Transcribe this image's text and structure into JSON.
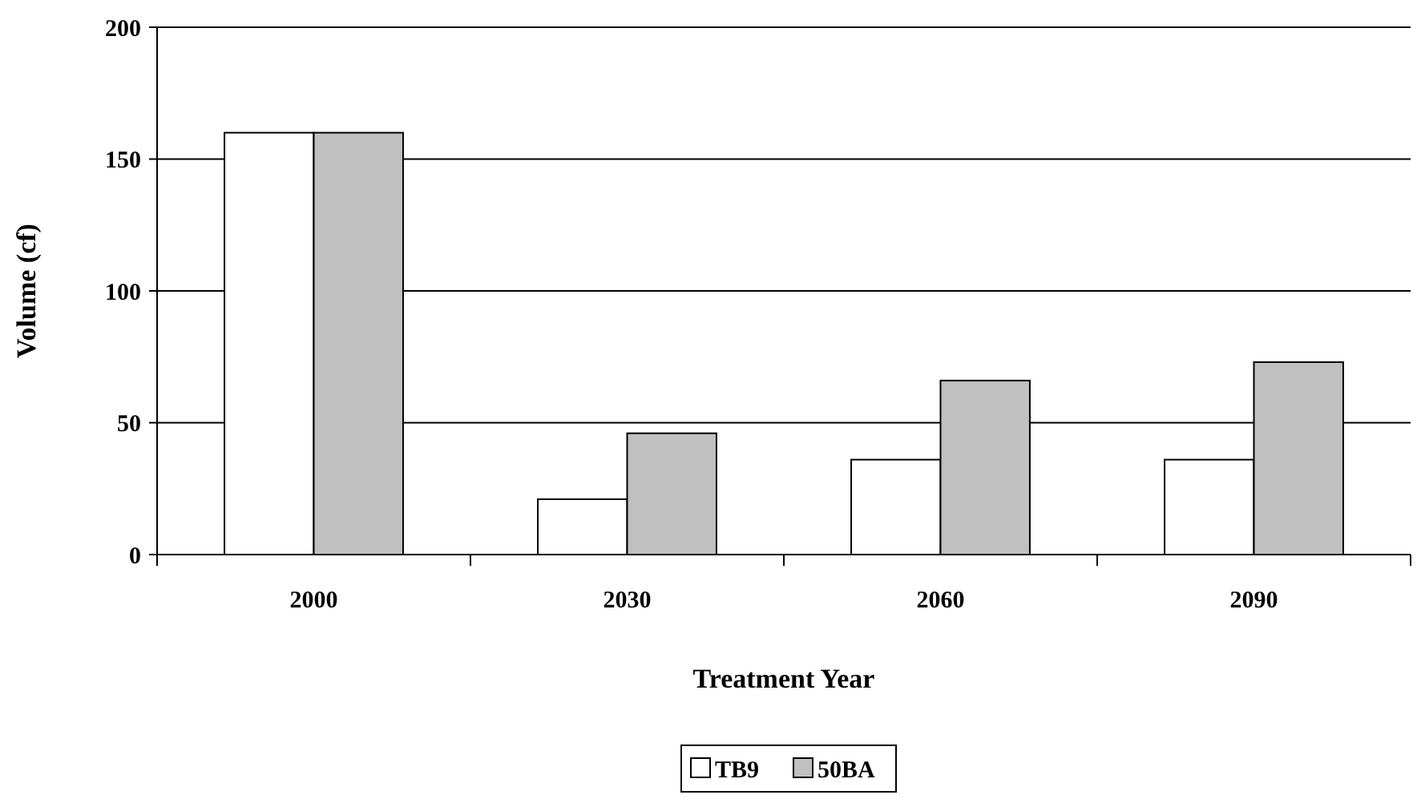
{
  "chart_data": {
    "type": "bar",
    "xlabel": "Treatment Year",
    "ylabel": "Volume (cf)",
    "categories": [
      "2000",
      "2030",
      "2060",
      "2090"
    ],
    "series": [
      {
        "name": "TB9",
        "color": "#ffffff",
        "values": [
          160,
          21,
          36,
          36
        ]
      },
      {
        "name": "50BA",
        "color": "#c0c0c0",
        "values": [
          160,
          46,
          66,
          73
        ]
      }
    ],
    "ylim": [
      0,
      200
    ],
    "yticks": [
      0,
      50,
      100,
      150,
      200
    ],
    "grid": "y",
    "legend": "bottom"
  }
}
